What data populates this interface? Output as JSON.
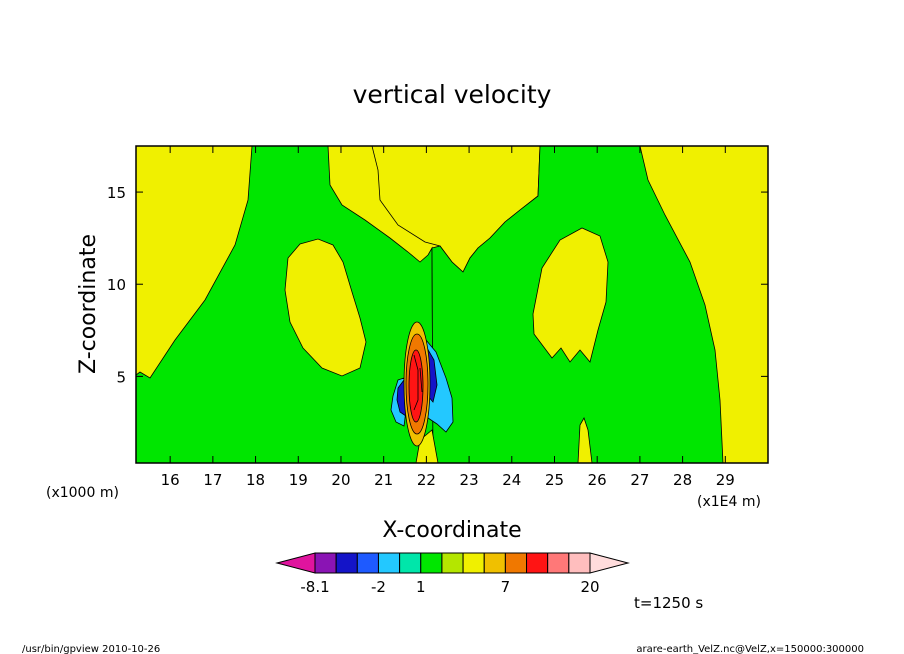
{
  "chart_data": {
    "type": "heatmap",
    "title": "vertical velocity",
    "xlabel": "X-coordinate",
    "ylabel": "Z-coordinate",
    "x_unit_left": "(x1000 m)",
    "x_unit_right": "(x1E4 m)",
    "xlim": [
      15.2,
      30.0
    ],
    "ylim": [
      0.3,
      17.5
    ],
    "x_ticks": [
      "16",
      "17",
      "18",
      "19",
      "20",
      "21",
      "22",
      "23",
      "24",
      "25",
      "26",
      "27",
      "28",
      "29"
    ],
    "y_ticks": [
      "5",
      "10",
      "15"
    ],
    "x_tick_values": [
      16,
      17,
      18,
      19,
      20,
      21,
      22,
      23,
      24,
      25,
      26,
      27,
      28,
      29
    ],
    "y_tick_values": [
      5,
      10,
      15
    ],
    "time_label": "t=1250 s",
    "colorbar": {
      "colors": [
        "#e0149e",
        "#8a14b4",
        "#1414c8",
        "#1e5aff",
        "#23c8ff",
        "#00e6aa",
        "#00e600",
        "#b4e600",
        "#f0f000",
        "#f0c000",
        "#f07800",
        "#ff1414",
        "#ff7878",
        "#ffbebe",
        "#ffdcdc"
      ],
      "tick_labels": [
        {
          "label": "-8.1",
          "bin": 1
        },
        {
          "label": "-2",
          "bin": 4
        },
        {
          "label": "1",
          "bin": 6
        },
        {
          "label": "7",
          "bin": 10
        },
        {
          "label": "20",
          "bin": 14
        }
      ]
    },
    "regions": [
      {
        "name": "positive-velocity-background",
        "color": "#f0f000"
      },
      {
        "name": "near-zero-velocity",
        "color": "#00e600"
      },
      {
        "name": "updraft-core",
        "color": "#ff1414",
        "center": [
          21.6,
          4.5
        ]
      },
      {
        "name": "downdraft-core",
        "color": "#1414c8",
        "center": [
          21.2,
          3.8
        ]
      }
    ]
  },
  "footer": {
    "left": "/usr/bin/gpview   2010-10-26",
    "right": "arare-earth_VelZ.nc@VelZ,x=150000:300000"
  }
}
